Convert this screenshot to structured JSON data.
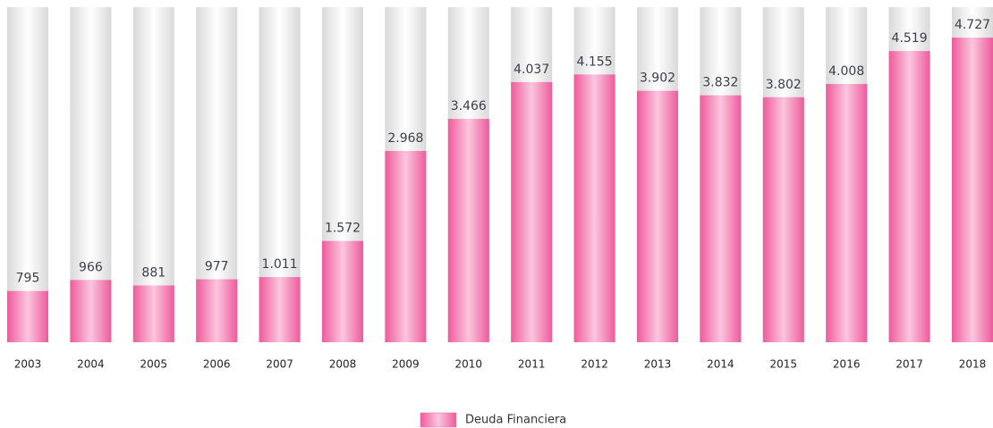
{
  "chart_data": {
    "type": "bar",
    "categories": [
      "2003",
      "2004",
      "2005",
      "2006",
      "2007",
      "2008",
      "2009",
      "2010",
      "2011",
      "2012",
      "2013",
      "2014",
      "2015",
      "2016",
      "2017",
      "2018"
    ],
    "series": [
      {
        "name": "Deuda Financiera",
        "color": "#f06aa5",
        "values": [
          795,
          966,
          881,
          977,
          1011,
          1572,
          2968,
          3466,
          4037,
          4155,
          3902,
          3832,
          3802,
          4008,
          4519,
          4727
        ],
        "value_labels": [
          "795",
          "966",
          "881",
          "977",
          "1.011",
          "1.572",
          "2.968",
          "3.466",
          "4.037",
          "4.155",
          "3.902",
          "3.832",
          "3.802",
          "4.008",
          "4.519",
          "4.727"
        ]
      }
    ],
    "ylim": [
      0,
      5200
    ]
  }
}
